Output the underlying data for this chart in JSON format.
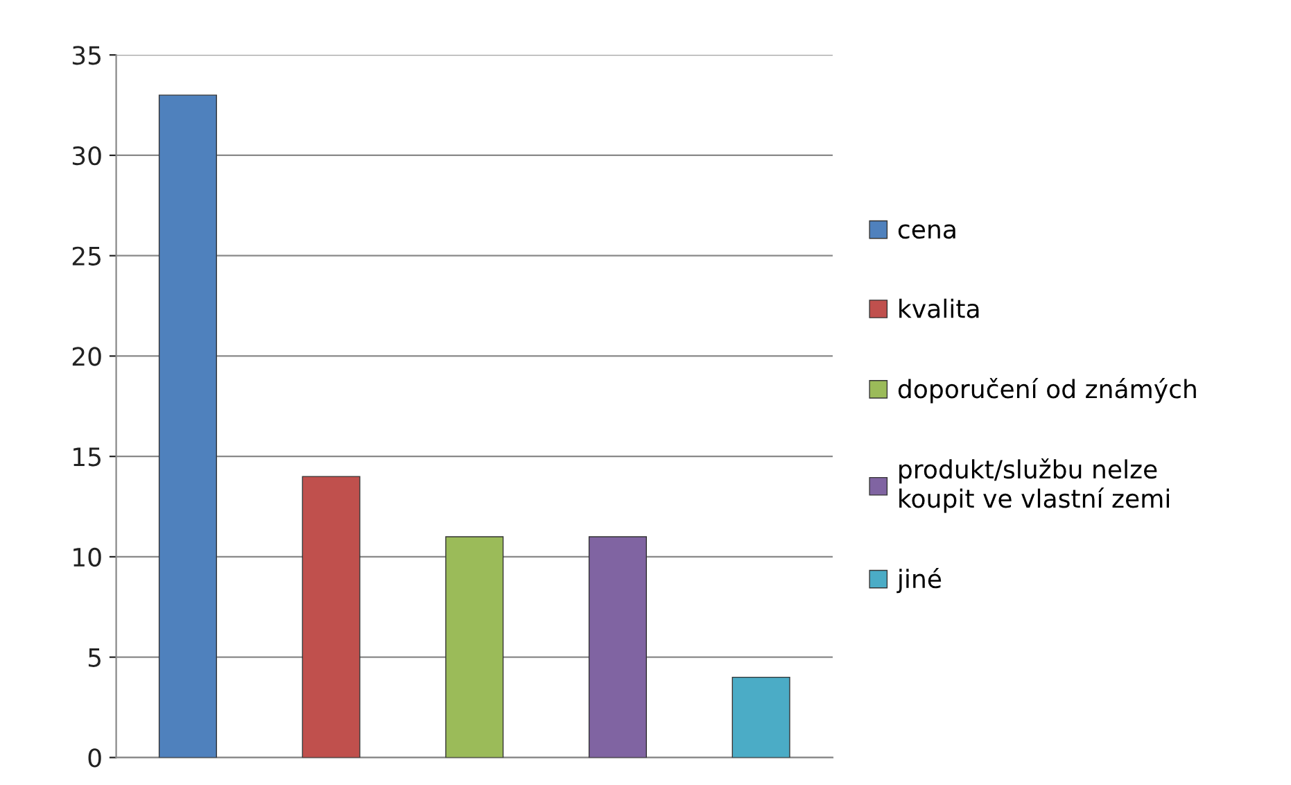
{
  "chart_data": {
    "type": "bar",
    "categories": [
      null,
      null,
      null,
      null,
      null
    ],
    "series": [
      {
        "name": "cena",
        "color": "#4f81bd",
        "values": [
          33,
          null,
          null,
          null,
          null
        ]
      },
      {
        "name": "kvalita",
        "color": "#c0504d",
        "values": [
          null,
          14,
          null,
          null,
          null
        ]
      },
      {
        "name": "doporučení od známých",
        "color": "#9bbb59",
        "values": [
          null,
          null,
          11,
          null,
          null
        ]
      },
      {
        "name": "produkt/službu nelze\nkoupit ve vlastní zemi",
        "color": "#8064a2",
        "values": [
          null,
          null,
          null,
          11,
          null
        ]
      },
      {
        "name": "jiné",
        "color": "#4bacc6",
        "values": [
          null,
          null,
          null,
          null,
          4
        ]
      }
    ],
    "ylim": [
      0,
      35
    ],
    "yticks": [
      0,
      5,
      10,
      15,
      20,
      25,
      30,
      35
    ],
    "grid": "y",
    "legend": "right"
  }
}
